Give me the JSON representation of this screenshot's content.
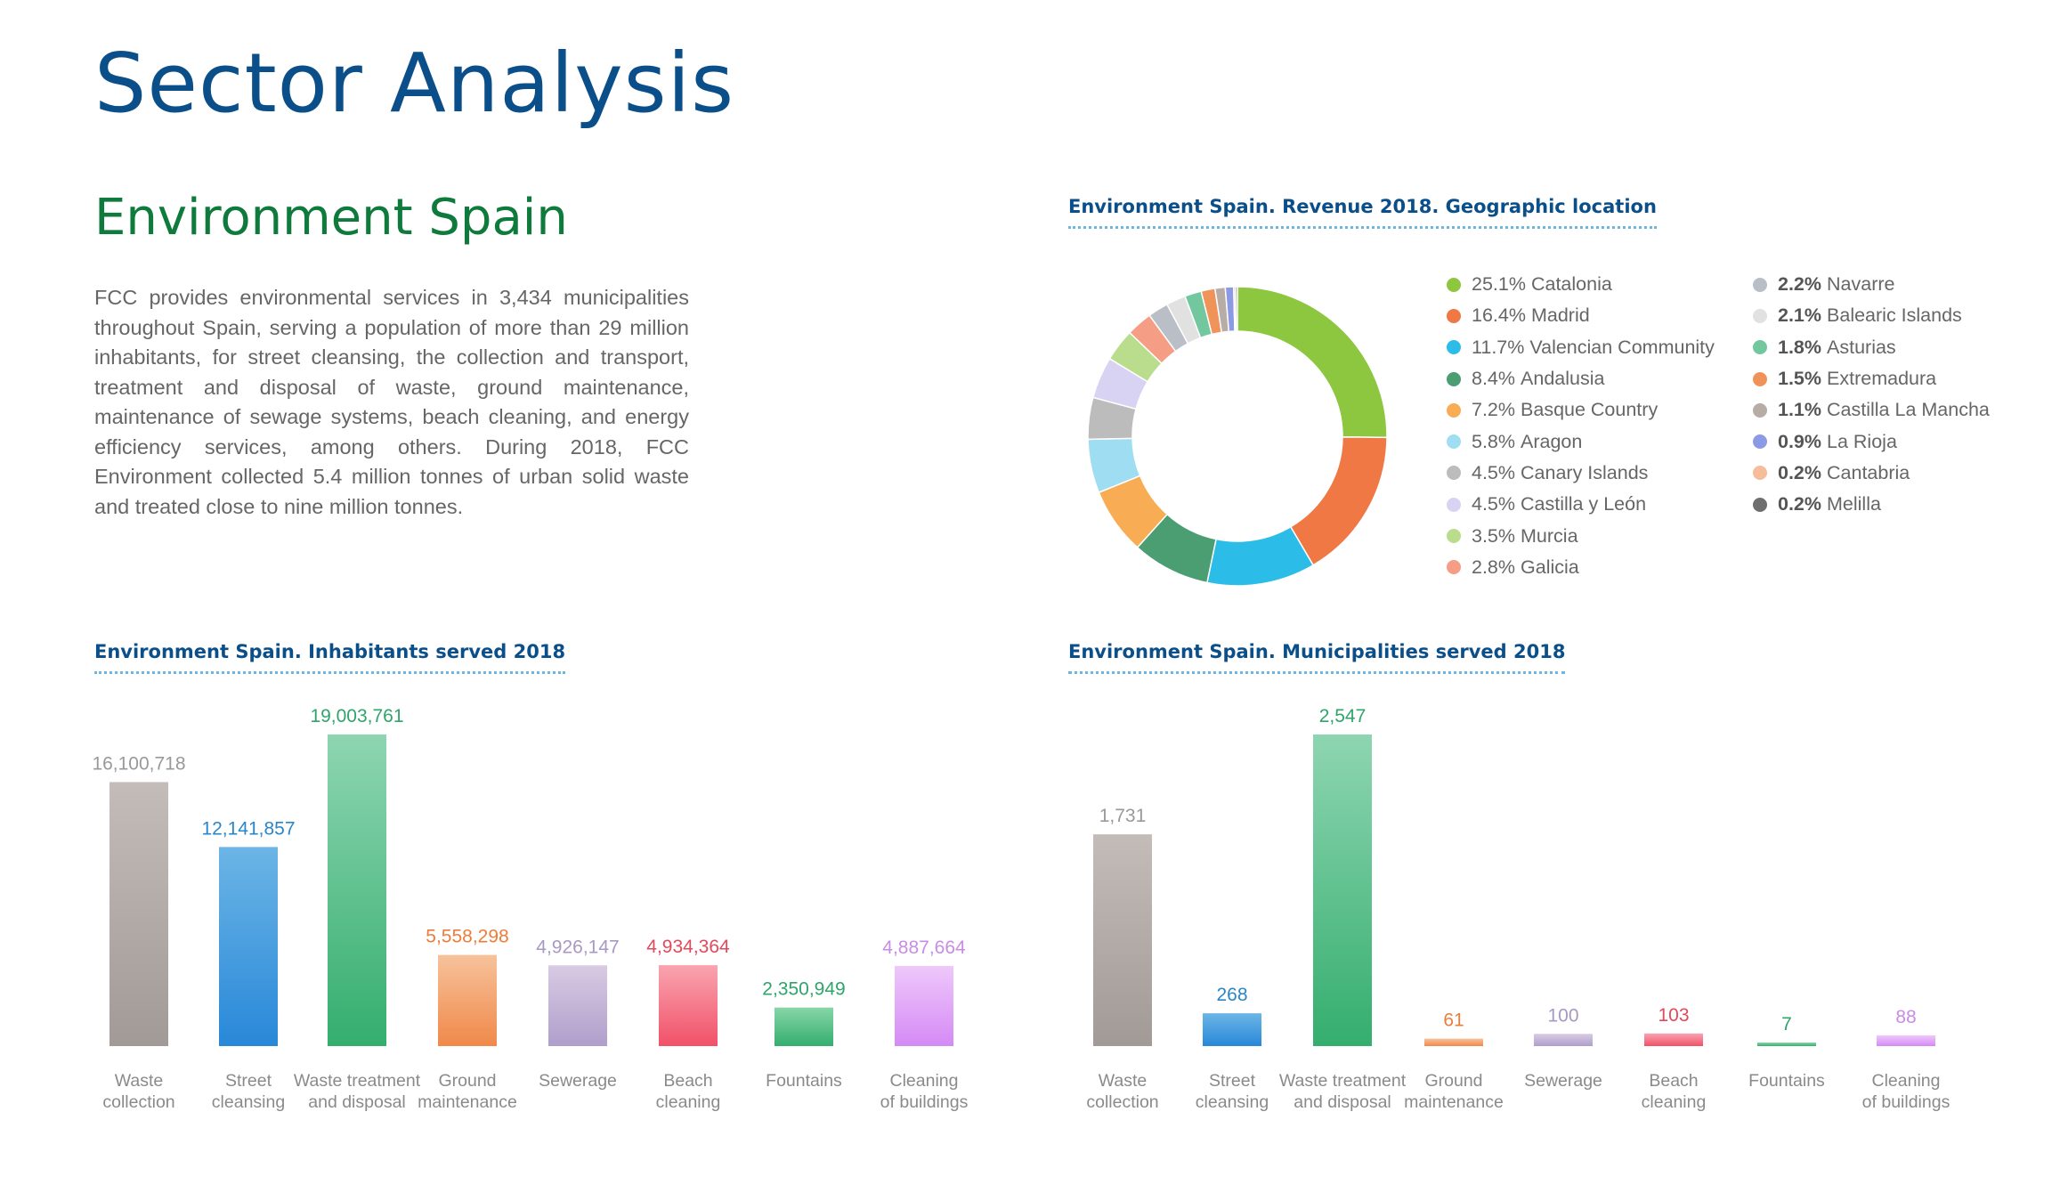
{
  "page": {
    "title": "Sector Analysis",
    "section_title": "Environment Spain",
    "intro": "FCC provides environmental services in 3,434 municipalities throughout Spain, serving a population of more than 29 million inhabitants, for street cleansing, the collection and transport, treatment and disposal of waste, ground maintenance, maintenance of sewage systems, beach cleaning, and energy efficiency services, among others. During 2018, FCC Environment collected 5.4 million tonnes of urban solid waste and treated close to nine million tonnes."
  },
  "chart_data": [
    {
      "type": "pie",
      "title": "Environment Spain. Revenue 2018. Geographic location",
      "labels": [
        "Catalonia",
        "Madrid",
        "Valencian Community",
        "Andalusia",
        "Basque Country",
        "Aragon",
        "Canary Islands",
        "Castilla y León",
        "Murcia",
        "Galicia",
        "Navarre",
        "Balearic Islands",
        "Asturias",
        "Extremadura",
        "Castilla La Mancha",
        "La Rioja",
        "Cantabria",
        "Melilla"
      ],
      "values": [
        25.1,
        16.4,
        11.7,
        8.4,
        7.2,
        5.8,
        4.5,
        4.5,
        3.5,
        2.8,
        2.2,
        2.1,
        1.8,
        1.5,
        1.1,
        0.9,
        0.2,
        0.2
      ],
      "value_labels": [
        "25.1%",
        "16.4%",
        "11.7%",
        "8.4%",
        "7.2%",
        "5.8%",
        "4.5%",
        "4.5%",
        "3.5%",
        "2.8%",
        "2.2%",
        "2.1%",
        "1.8%",
        "1.5%",
        "1.1%",
        "0.9%",
        "0.2%",
        "0.2%"
      ],
      "colors": [
        "#8dc63f",
        "#f07845",
        "#2bbde8",
        "#4a9e72",
        "#f8ad55",
        "#9fddf3",
        "#bcbcbc",
        "#d9d3f3",
        "#b9dc8d",
        "#f59d85",
        "#b9bec7",
        "#e1e1e1",
        "#72c79f",
        "#f0935a",
        "#b7aca6",
        "#8c9ae6",
        "#f5bd9a",
        "#6f6f6f"
      ],
      "donut": true,
      "legend": "right"
    },
    {
      "type": "bar",
      "title": "Environment Spain. Inhabitants served 2018",
      "categories": [
        "Waste\ncollection",
        "Street\ncleansing",
        "Waste treatment\nand disposal",
        "Ground\nmaintenance",
        "Sewerage",
        "Beach\ncleaning",
        "Fountains",
        "Cleaning\nof buildings"
      ],
      "values": [
        16100718,
        12141857,
        19003761,
        5558298,
        4926147,
        4934364,
        2350949,
        4887664
      ],
      "value_labels": [
        "16,100,718",
        "12,141,857",
        "19,003,761",
        "5,558,298",
        "4,926,147",
        "4,934,364",
        "2,350,949",
        "4,887,664"
      ],
      "colors": [
        [
          "#c3bcb8",
          "#a19a96"
        ],
        [
          "#6cb5e6",
          "#2888d8"
        ],
        [
          "#8ed5b1",
          "#34ae6e"
        ],
        [
          "#f7c29b",
          "#f0894a"
        ],
        [
          "#d8cbe3",
          "#b09ecb"
        ],
        [
          "#f9a4b0",
          "#f15168"
        ],
        [
          "#87d6a8",
          "#34ae6e"
        ],
        [
          "#eec8fb",
          "#d58af5"
        ]
      ],
      "label_colors": [
        "#999999",
        "#2a86c8",
        "#2fa46b",
        "#eb7d3c",
        "#a899c3",
        "#e24a5c",
        "#2fa46b",
        "#c98ce6"
      ],
      "ylim": [
        0,
        19003761
      ],
      "grid": false
    },
    {
      "type": "bar",
      "title": "Environment Spain. Municipalities served 2018",
      "categories": [
        "Waste\ncollection",
        "Street\ncleansing",
        "Waste treatment\nand disposal",
        "Ground\nmaintenance",
        "Sewerage",
        "Beach\ncleaning",
        "Fountains",
        "Cleaning\nof buildings"
      ],
      "values": [
        1731,
        268,
        2547,
        61,
        100,
        103,
        7,
        88
      ],
      "value_labels": [
        "1,731",
        "268",
        "2,547",
        "61",
        "100",
        "103",
        "7",
        "88"
      ],
      "colors": [
        [
          "#c3bcb8",
          "#a19a96"
        ],
        [
          "#6cb5e6",
          "#2888d8"
        ],
        [
          "#8ed5b1",
          "#34ae6e"
        ],
        [
          "#f7c29b",
          "#f0894a"
        ],
        [
          "#d8cbe3",
          "#b09ecb"
        ],
        [
          "#f9a4b0",
          "#f15168"
        ],
        [
          "#87d6a8",
          "#34ae6e"
        ],
        [
          "#eec8fb",
          "#d58af5"
        ]
      ],
      "label_colors": [
        "#999999",
        "#2a86c8",
        "#2fa46b",
        "#eb7d3c",
        "#a899c3",
        "#e24a5c",
        "#2fa46b",
        "#c98ce6"
      ],
      "ylim": [
        0,
        2547
      ],
      "grid": false
    }
  ]
}
